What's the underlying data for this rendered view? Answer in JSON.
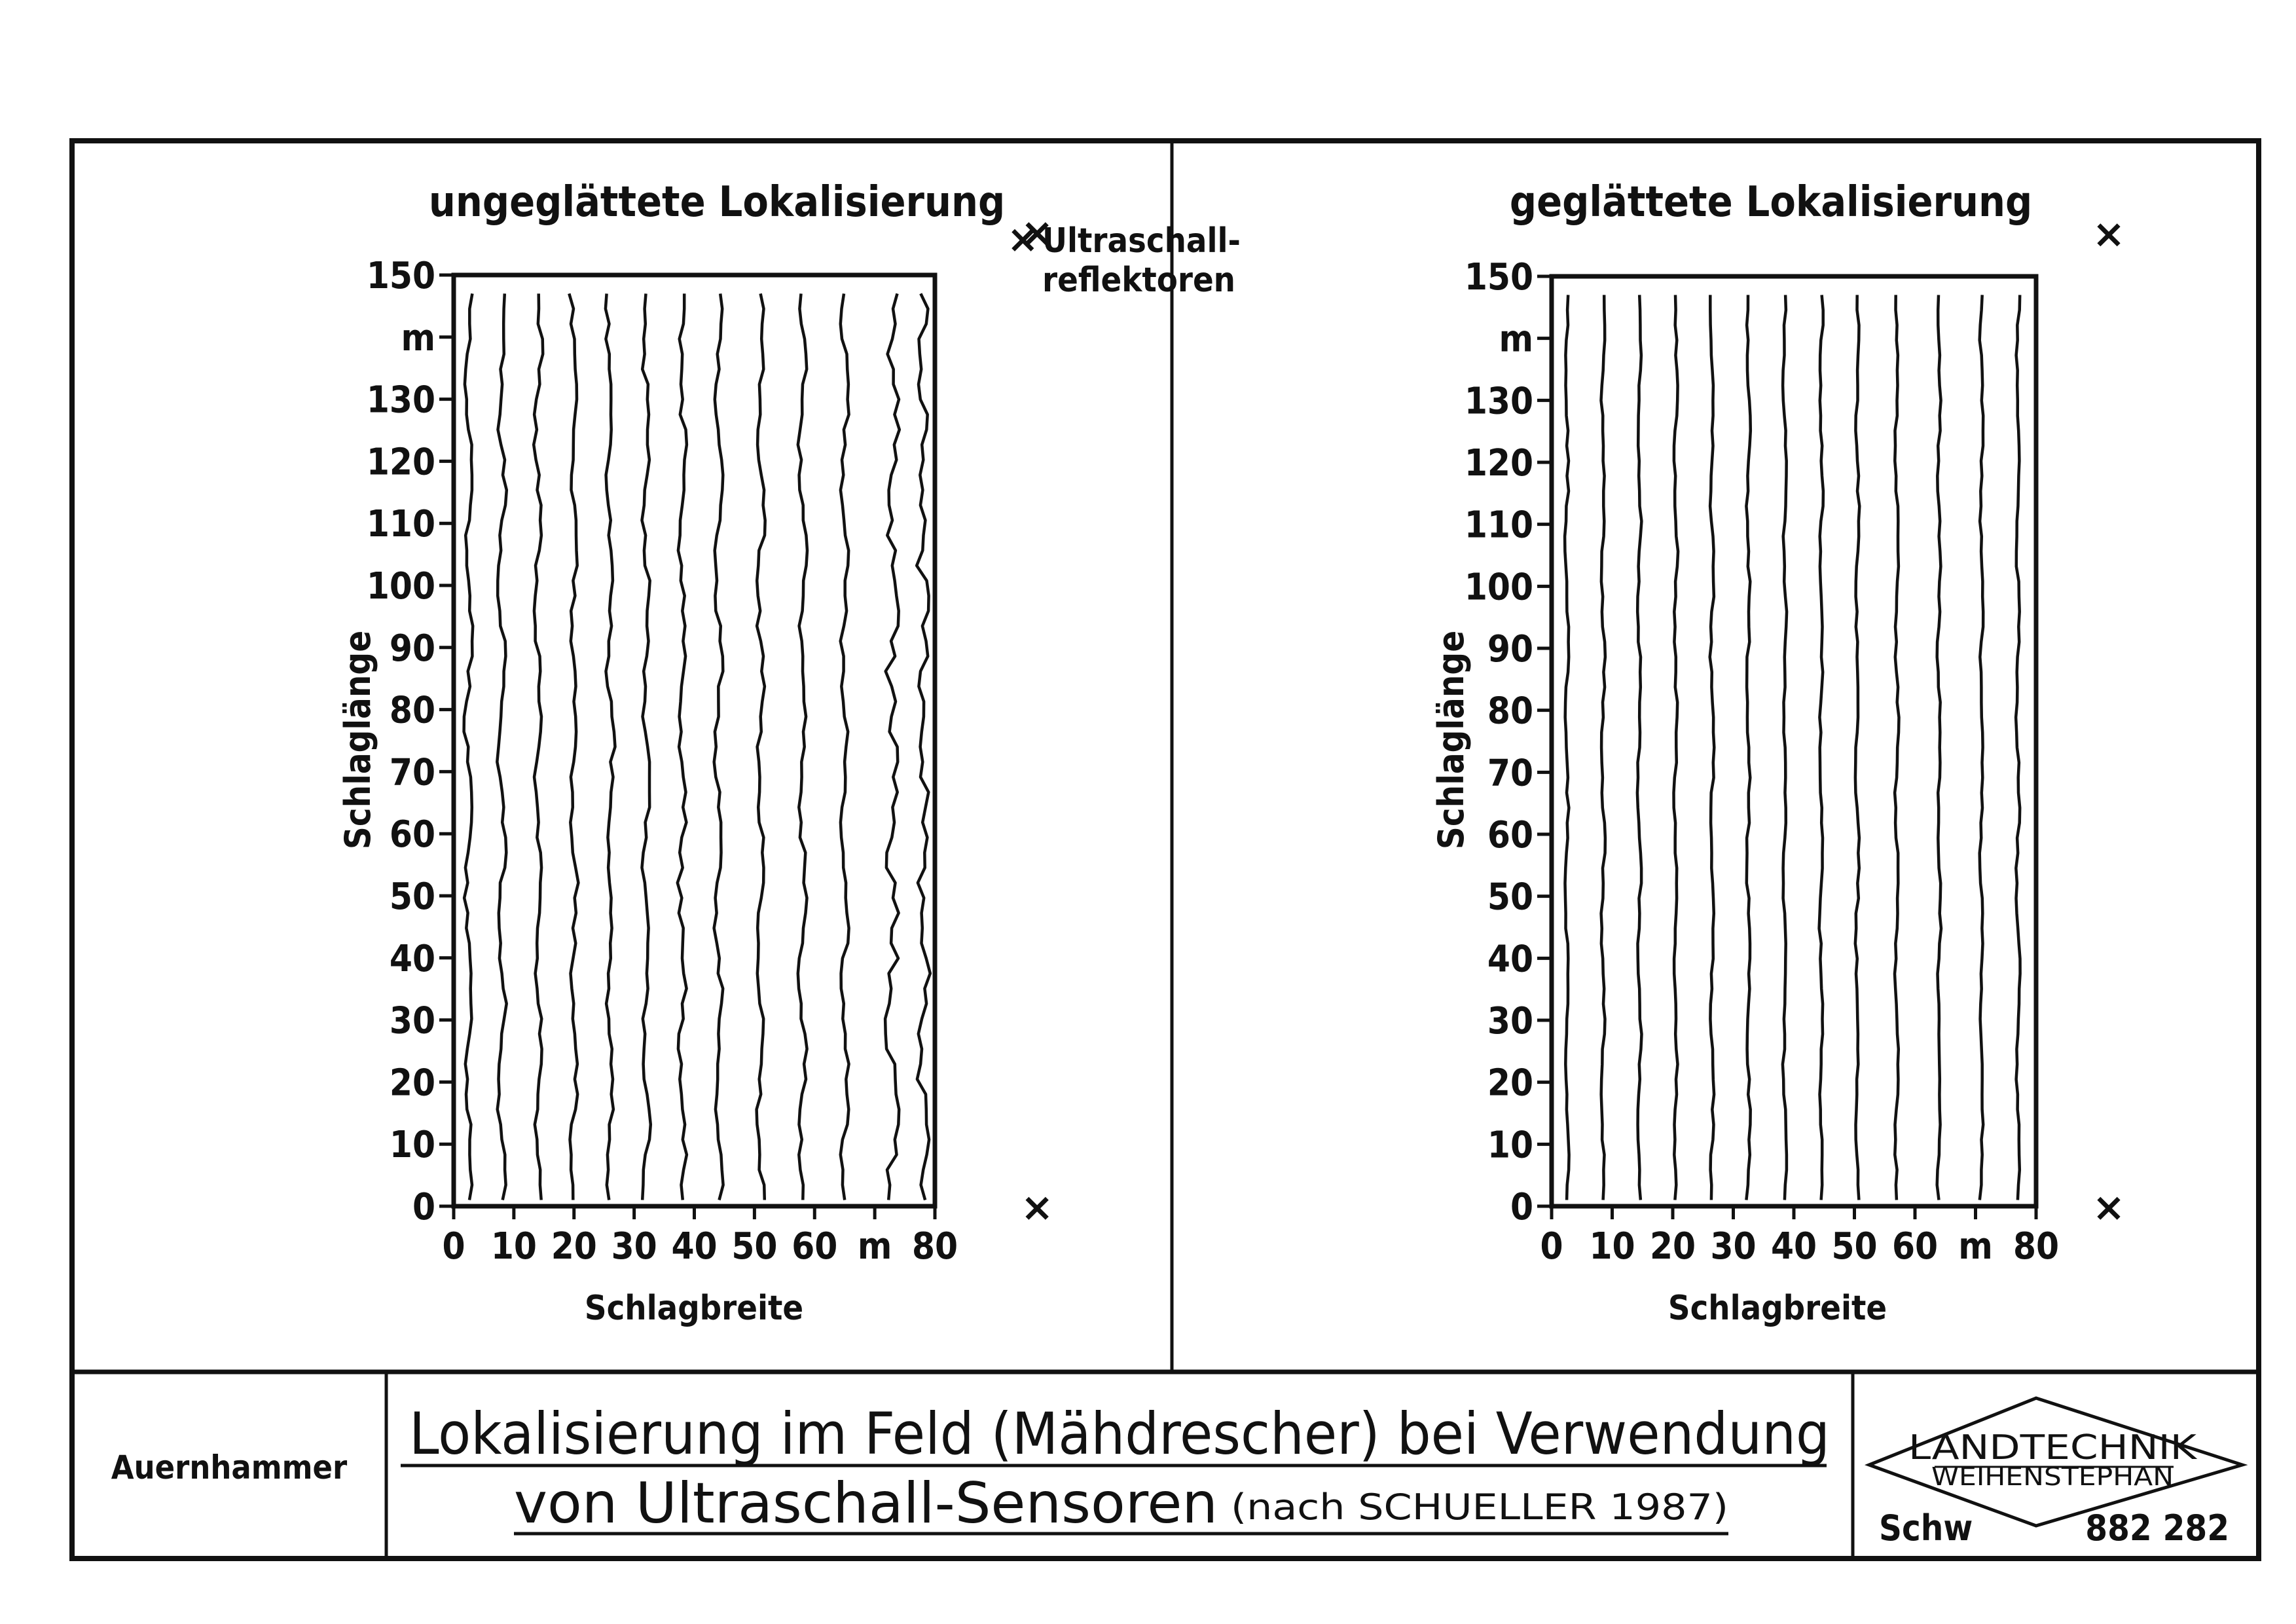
{
  "legend": {
    "marker": "×",
    "line1": "Ultraschall-",
    "line2": "reflektoren",
    "marker_icon": "cross-icon"
  },
  "footer": {
    "author": "Auernhammer",
    "title_line1": "Lokalisierung im Feld (Mähdrescher) bei Verwendung",
    "title_line2": "von Ultraschall-Sensoren",
    "title_note": "(nach SCHUELLER 1987)",
    "logo_line1": "LANDTECHNIK",
    "logo_line2": "WEIHENSTEPHAN",
    "code_left": "Schw",
    "code_right": "882 282"
  },
  "chart_data": [
    {
      "type": "line",
      "title": "ungeglättete Lokalisierung",
      "xlabel": "Schlagbreite",
      "ylabel": "Schlaglänge",
      "x_unit": "m",
      "y_unit": "m",
      "xlim": [
        0,
        80
      ],
      "ylim": [
        0,
        150
      ],
      "x_ticks": [
        "0",
        "10",
        "20",
        "30",
        "40",
        "50",
        "60",
        "m",
        "80"
      ],
      "y_ticks": [
        "0",
        "10",
        "20",
        "30",
        "40",
        "50",
        "60",
        "70",
        "80",
        "90",
        "100",
        "110",
        "120",
        "130",
        "m",
        "150"
      ],
      "reflector_marker": "×",
      "reflectors": [
        {
          "x": 97,
          "y": 157
        },
        {
          "x": 97,
          "y": 0
        }
      ],
      "tracks_x": [
        2.5,
        8,
        14,
        20,
        26,
        32,
        38,
        44,
        51,
        58,
        65,
        73,
        78
      ],
      "track_y_range": [
        0,
        147
      ],
      "smoothed": false
    },
    {
      "type": "line",
      "title": "geglättete Lokalisierung",
      "xlabel": "Schlagbreite",
      "ylabel": "Schlaglänge",
      "x_unit": "m",
      "y_unit": "m",
      "xlim": [
        0,
        80
      ],
      "ylim": [
        0,
        150
      ],
      "x_ticks": [
        "0",
        "10",
        "20",
        "30",
        "40",
        "50",
        "60",
        "m",
        "80"
      ],
      "y_ticks": [
        "0",
        "10",
        "20",
        "30",
        "40",
        "50",
        "60",
        "70",
        "80",
        "90",
        "100",
        "110",
        "120",
        "130",
        "m",
        "150"
      ],
      "reflector_marker": "×",
      "reflectors": [
        {
          "x": 92,
          "y": 157
        },
        {
          "x": 92,
          "y": 0
        }
      ],
      "tracks_x": [
        2.5,
        8.5,
        14.5,
        20.5,
        26.5,
        32.5,
        38.5,
        44.5,
        50.5,
        57,
        64,
        71,
        77
      ],
      "track_y_range": [
        0,
        147
      ],
      "smoothed": true
    }
  ]
}
